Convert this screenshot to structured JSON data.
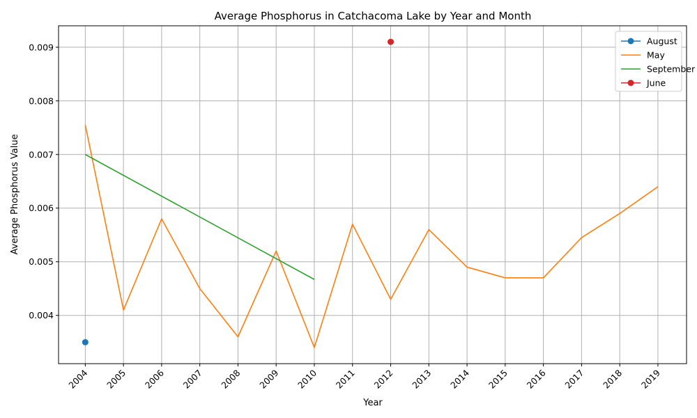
{
  "chart_data": {
    "type": "line",
    "title": "Average Phosphorus in Catchacoma Lake by Year and Month",
    "xlabel": "Year",
    "ylabel": "Average Phosphorus Value",
    "x_ticks": [
      "2004",
      "2005",
      "2006",
      "2007",
      "2008",
      "2009",
      "2010",
      "2011",
      "2012",
      "2013",
      "2014",
      "2015",
      "2016",
      "2017",
      "2018",
      "2019"
    ],
    "y_ticks": [
      "0.004",
      "0.005",
      "0.006",
      "0.007",
      "0.008",
      "0.009"
    ],
    "xlim": [
      2003.3,
      2019.75
    ],
    "ylim": [
      0.0031,
      0.0094
    ],
    "grid": true,
    "legend_position": "top-right",
    "series": [
      {
        "name": "August",
        "color": "#1f77b4",
        "marker": "circle",
        "x": [
          2004
        ],
        "values": [
          0.0035
        ]
      },
      {
        "name": "May",
        "color": "#ff7f0e",
        "marker": "none",
        "x": [
          2004,
          2005,
          2006,
          2007,
          2008,
          2009,
          2010,
          2011,
          2012,
          2013,
          2014,
          2015,
          2016,
          2017,
          2018,
          2019
        ],
        "values": [
          0.00755,
          0.0041,
          0.0058,
          0.0045,
          0.0036,
          0.0052,
          0.0034,
          0.0057,
          0.0043,
          0.0056,
          0.0049,
          0.0047,
          0.0047,
          0.00545,
          0.0059,
          0.0064
        ]
      },
      {
        "name": "September",
        "color": "#2ca02c",
        "marker": "none",
        "x": [
          2004,
          2010
        ],
        "values": [
          0.007,
          0.00467
        ]
      },
      {
        "name": "June",
        "color": "#d62728",
        "marker": "circle",
        "x": [
          2012
        ],
        "values": [
          0.0091
        ]
      }
    ]
  }
}
